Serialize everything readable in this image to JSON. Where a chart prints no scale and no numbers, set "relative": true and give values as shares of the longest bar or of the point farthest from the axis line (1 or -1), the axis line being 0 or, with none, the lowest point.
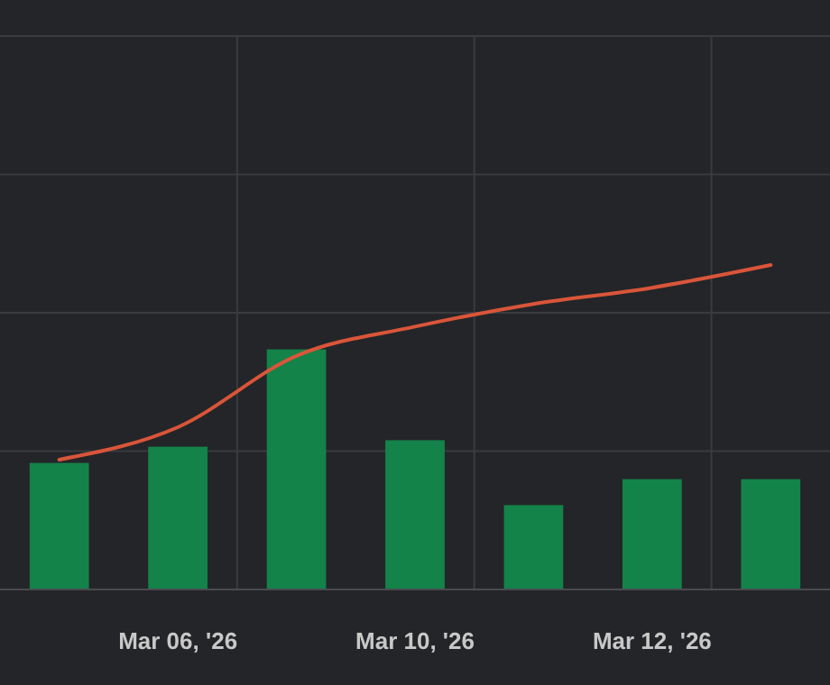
{
  "chart_data": {
    "type": "bar",
    "relative": true,
    "grid": true,
    "categories": [
      null,
      "Mar 06, '26",
      null,
      "Mar 10, '26",
      null,
      "Mar 12, '26",
      null
    ],
    "series": [
      {
        "color": "#13834a",
        "values": [
          0.39,
          0.44,
          0.74,
          0.46,
          0.26,
          0.34,
          0.34
        ]
      },
      {
        "type": "line",
        "color": "#d9553a",
        "values": [
          0.4,
          0.5,
          0.72,
          0.81,
          0.88,
          0.93,
          1
        ]
      }
    ]
  }
}
